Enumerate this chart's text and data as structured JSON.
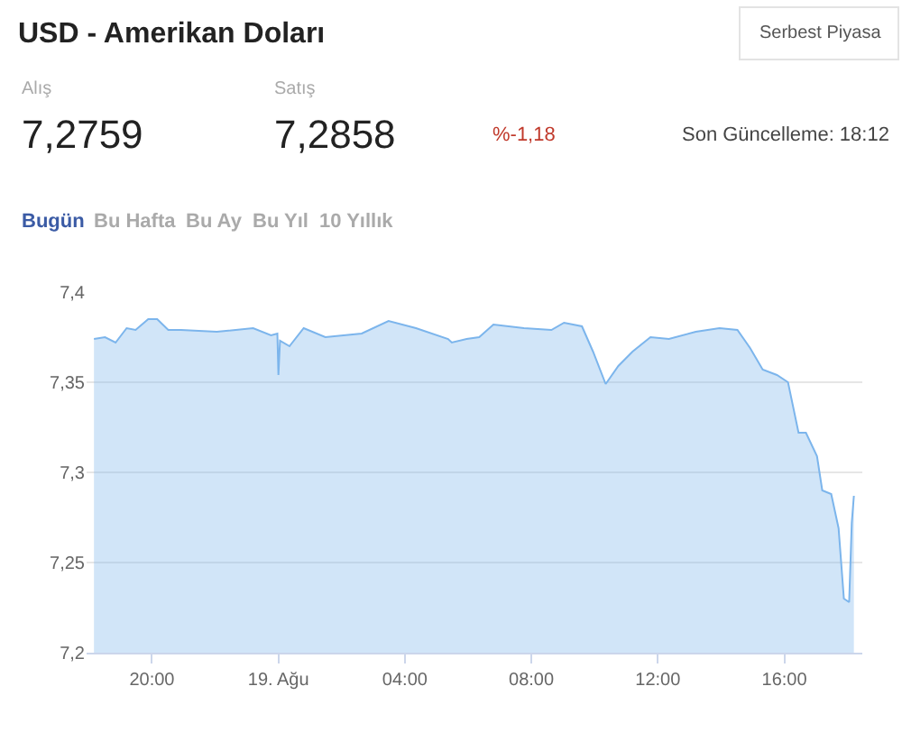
{
  "chart_data": {
    "type": "area",
    "title": "USD - Amerikan Doları",
    "annotations": [
      "Serbest Piyasa",
      "Alış",
      "7,2759",
      "Satış",
      "7,2858",
      "%-1,18",
      "Son Güncelleme: 18:12",
      "Bugün",
      "Bu Hafta",
      "Bu Ay",
      "Bu Yıl",
      "10 Yıllık"
    ],
    "x": [
      "--08-18T18:10",
      "--08-18T18:31",
      "--08-18T18:51",
      "--08-18T19:12",
      "--08-18T19:29",
      "--08-18T19:53",
      "--08-18T20:10",
      "--08-18T20:31",
      "--08-18T20:55",
      "--08-18T22:03",
      "--08-18T23:12",
      "--08-18T23:46",
      "--08-18T23:58",
      "--08-19T00:00",
      "--08-19T00:03",
      "--08-19T00:21",
      "--08-19T00:48",
      "--08-19T01:29",
      "--08-19T02:38",
      "--08-19T03:29",
      "--08-19T04:21",
      "--08-19T05:22",
      "--08-19T05:29",
      "--08-19T05:57",
      "--08-19T06:21",
      "--08-19T06:48",
      "--08-19T07:46",
      "--08-19T08:38",
      "--08-19T09:02",
      "--08-19T09:36",
      "--08-19T09:57",
      "--08-19T10:21",
      "--08-19T10:45",
      "--08-19T11:12",
      "--08-19T11:46",
      "--08-19T12:21",
      "--08-19T13:12",
      "--08-19T13:57",
      "--08-19T14:31",
      "--08-19T14:55",
      "--08-19T15:19",
      "--08-19T15:46",
      "--08-19T16:07",
      "--08-19T16:27",
      "--08-19T16:41",
      "--08-19T17:02",
      "--08-19T17:12",
      "--08-19T17:29",
      "--08-19T17:43",
      "--08-19T17:53",
      "--08-19T18:03",
      "--08-19T18:08",
      "--08-19T18:12"
    ],
    "series": [
      {
        "color": "#7cb5ec",
        "values": [
          7.374,
          7.375,
          7.372,
          7.38,
          7.379,
          7.385,
          7.385,
          7.379,
          7.379,
          7.378,
          7.38,
          7.376,
          7.377,
          7.354,
          7.373,
          7.37,
          7.38,
          7.375,
          7.377,
          7.384,
          7.38,
          7.374,
          7.372,
          7.374,
          7.375,
          7.382,
          7.38,
          7.379,
          7.383,
          7.381,
          7.367,
          7.349,
          7.359,
          7.367,
          7.375,
          7.374,
          7.378,
          7.38,
          7.379,
          7.369,
          7.357,
          7.354,
          7.35,
          7.322,
          7.322,
          7.309,
          7.29,
          7.288,
          7.269,
          7.23,
          7.228,
          7.272,
          7.287
        ]
      }
    ],
    "xlim": [
      "--08-18T17:56",
      "--08-19T18:28"
    ],
    "xticks": [
      {
        "value": "--08-18T20:00",
        "label": "20:00"
      },
      {
        "value": "--08-19T00:00",
        "label": "19. Ağu"
      },
      {
        "value": "--08-19T04:00",
        "label": "04:00"
      },
      {
        "value": "--08-19T08:00",
        "label": "08:00"
      },
      {
        "value": "--08-19T12:00",
        "label": "12:00"
      },
      {
        "value": "--08-19T16:00",
        "label": "16:00"
      }
    ],
    "ylim": [
      7.2,
      7.4
    ],
    "yticks": [
      {
        "value": 7.2,
        "label": "7,2"
      },
      {
        "value": 7.25,
        "label": "7,25"
      },
      {
        "value": 7.3,
        "label": "7,3"
      },
      {
        "value": 7.35,
        "label": "7,35"
      },
      {
        "value": 7.4,
        "label": "7,4"
      }
    ],
    "grid": "y",
    "marker": "none",
    "line_style": "solid"
  }
}
